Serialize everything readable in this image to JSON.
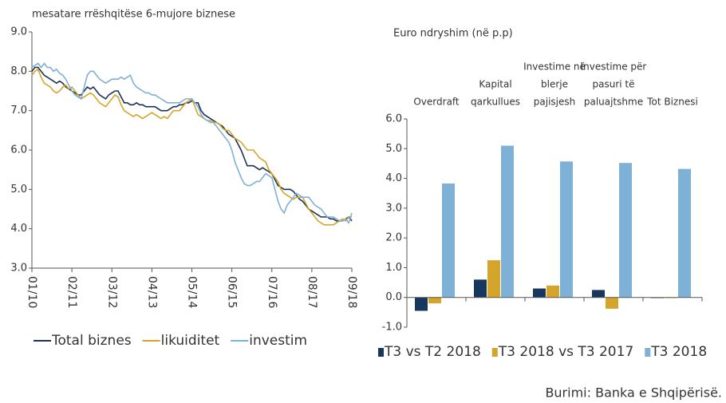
{
  "chart_data": [
    {
      "type": "line",
      "title": "mesatare rrëshqitëse 6-mujore biznese",
      "categories": [
        "01/10",
        null,
        null,
        null,
        null,
        null,
        null,
        null,
        null,
        null,
        null,
        null,
        null,
        "02/11",
        null,
        null,
        null,
        null,
        null,
        null,
        null,
        null,
        null,
        null,
        null,
        null,
        "03/12",
        null,
        null,
        null,
        null,
        null,
        null,
        null,
        null,
        null,
        null,
        null,
        null,
        "04/13",
        null,
        null,
        null,
        null,
        null,
        null,
        null,
        null,
        null,
        null,
        null,
        null,
        "05/14",
        null,
        null,
        null,
        null,
        null,
        null,
        null,
        null,
        null,
        null,
        null,
        null,
        "06/15",
        null,
        null,
        null,
        null,
        null,
        null,
        null,
        null,
        null,
        null,
        null,
        null,
        "07/16",
        null,
        null,
        null,
        null,
        null,
        null,
        null,
        null,
        null,
        null,
        null,
        null,
        "08/17",
        null,
        null,
        null,
        null,
        null,
        null,
        null,
        null,
        null,
        null,
        null,
        null,
        "09/18"
      ],
      "ylim": [
        3,
        9
      ],
      "yticks": [
        {
          "value": 3,
          "label": "3.0"
        },
        {
          "value": 4,
          "label": "4.0"
        },
        {
          "value": 5,
          "label": "5.0"
        },
        {
          "value": 6,
          "label": "6.0"
        },
        {
          "value": 7,
          "label": "7.0"
        },
        {
          "value": 8,
          "label": "8.0"
        },
        {
          "value": 9,
          "label": "9.0"
        }
      ],
      "series": [
        {
          "name": "Total biznes",
          "color": "#1b3350",
          "values": [
            8.0,
            8.1,
            8.1,
            8.0,
            7.9,
            7.85,
            7.8,
            7.75,
            7.7,
            7.75,
            7.7,
            7.6,
            7.55,
            7.5,
            7.45,
            7.4,
            7.4,
            7.5,
            7.6,
            7.55,
            7.6,
            7.5,
            7.4,
            7.35,
            7.3,
            7.4,
            7.45,
            7.5,
            7.5,
            7.35,
            7.2,
            7.2,
            7.15,
            7.15,
            7.2,
            7.15,
            7.15,
            7.1,
            7.1,
            7.1,
            7.1,
            7.05,
            7.0,
            7.0,
            7.0,
            7.05,
            7.1,
            7.1,
            7.15,
            7.15,
            7.2,
            7.2,
            7.25,
            7.2,
            7.2,
            7.0,
            6.9,
            6.85,
            6.8,
            6.75,
            6.7,
            6.65,
            6.6,
            6.5,
            6.4,
            6.35,
            6.3,
            6.15,
            6.0,
            5.8,
            5.6,
            5.6,
            5.6,
            5.55,
            5.5,
            5.55,
            5.5,
            5.45,
            5.4,
            5.25,
            5.1,
            5.05,
            5.0,
            5.0,
            5.0,
            4.95,
            4.85,
            4.75,
            4.7,
            4.6,
            4.5,
            4.45,
            4.4,
            4.35,
            4.3,
            4.3,
            4.3,
            4.25,
            4.25,
            4.2,
            4.2,
            4.2,
            4.25,
            4.3,
            4.2
          ]
        },
        {
          "name": "likuiditet",
          "color": "#d4a52a",
          "values": [
            7.9,
            8.0,
            8.05,
            7.85,
            7.7,
            7.65,
            7.6,
            7.5,
            7.45,
            7.5,
            7.6,
            7.65,
            7.55,
            7.6,
            7.5,
            7.4,
            7.3,
            7.35,
            7.4,
            7.45,
            7.4,
            7.3,
            7.2,
            7.15,
            7.1,
            7.2,
            7.3,
            7.4,
            7.35,
            7.15,
            7.0,
            6.95,
            6.9,
            6.85,
            6.9,
            6.85,
            6.8,
            6.85,
            6.9,
            6.95,
            6.9,
            6.85,
            6.8,
            6.85,
            6.8,
            6.9,
            7.0,
            7.0,
            7.0,
            7.1,
            7.2,
            7.25,
            7.3,
            7.1,
            6.9,
            6.85,
            6.8,
            6.75,
            6.75,
            6.7,
            6.7,
            6.65,
            6.55,
            6.5,
            6.5,
            6.4,
            6.3,
            6.25,
            6.2,
            6.1,
            6.0,
            6.0,
            6.0,
            5.9,
            5.8,
            5.75,
            5.7,
            5.5,
            5.4,
            5.3,
            5.2,
            5.0,
            4.9,
            4.85,
            4.8,
            4.75,
            4.8,
            4.8,
            4.8,
            4.65,
            4.5,
            4.4,
            4.3,
            4.2,
            4.15,
            4.1,
            4.1,
            4.1,
            4.1,
            4.15,
            4.2,
            4.25,
            4.2,
            4.3,
            4.3
          ]
        },
        {
          "name": "investim",
          "color": "#7fb0d6",
          "values": [
            8.1,
            8.15,
            8.2,
            8.1,
            8.2,
            8.1,
            8.1,
            8.0,
            8.05,
            7.95,
            7.9,
            7.8,
            7.65,
            7.5,
            7.4,
            7.35,
            7.3,
            7.6,
            7.9,
            8.0,
            8.0,
            7.9,
            7.8,
            7.75,
            7.7,
            7.75,
            7.8,
            7.8,
            7.8,
            7.85,
            7.8,
            7.85,
            7.9,
            7.7,
            7.6,
            7.55,
            7.5,
            7.45,
            7.45,
            7.4,
            7.4,
            7.35,
            7.3,
            7.25,
            7.2,
            7.2,
            7.2,
            7.2,
            7.2,
            7.25,
            7.3,
            7.3,
            7.3,
            7.2,
            7.1,
            6.9,
            6.8,
            6.75,
            6.7,
            6.7,
            6.6,
            6.5,
            6.4,
            6.3,
            6.2,
            6.0,
            5.7,
            5.5,
            5.3,
            5.15,
            5.1,
            5.1,
            5.15,
            5.2,
            5.2,
            5.3,
            5.4,
            5.35,
            5.3,
            5.0,
            4.7,
            4.5,
            4.4,
            4.6,
            4.7,
            4.8,
            4.9,
            4.85,
            4.8,
            4.8,
            4.8,
            4.7,
            4.6,
            4.55,
            4.5,
            4.4,
            4.3,
            4.3,
            4.3,
            4.25,
            4.2,
            4.2,
            4.25,
            4.15,
            4.4
          ]
        }
      ]
    },
    {
      "type": "bar",
      "ylabel": "Euro ndryshim (në p.p)",
      "categories": [
        [
          "Overdraft"
        ],
        [
          "Kapital",
          "qarkullues"
        ],
        [
          "Investime në",
          "blerje",
          "pajisjesh"
        ],
        [
          "Investime për",
          "pasuri të",
          "paluajtshme"
        ],
        [
          "Tot Biznesi"
        ]
      ],
      "ylim": [
        -1,
        6
      ],
      "yticks": [
        {
          "value": -1,
          "label": "-1.0"
        },
        {
          "value": 0,
          "label": "0.0"
        },
        {
          "value": 1,
          "label": "1.0"
        },
        {
          "value": 2,
          "label": "2.0"
        },
        {
          "value": 3,
          "label": "3.0"
        },
        {
          "value": 4,
          "label": "4.0"
        },
        {
          "value": 5,
          "label": "5.0"
        },
        {
          "value": 6,
          "label": "6.0"
        }
      ],
      "series": [
        {
          "name": "T3 vs T2 2018",
          "color": "#17375e",
          "values": [
            -0.45,
            0.6,
            0.3,
            0.25,
            -0.02
          ]
        },
        {
          "name": "T3 2018 vs T3 2017",
          "color": "#d4a52a",
          "values": [
            -0.2,
            1.25,
            0.4,
            -0.38,
            0
          ]
        },
        {
          "name": "T3 2018",
          "color": "#7fb0d6",
          "values": [
            3.83,
            5.1,
            4.57,
            4.52,
            4.32
          ]
        }
      ]
    }
  ],
  "source": "Burimi: Banka e Shqipërisë."
}
